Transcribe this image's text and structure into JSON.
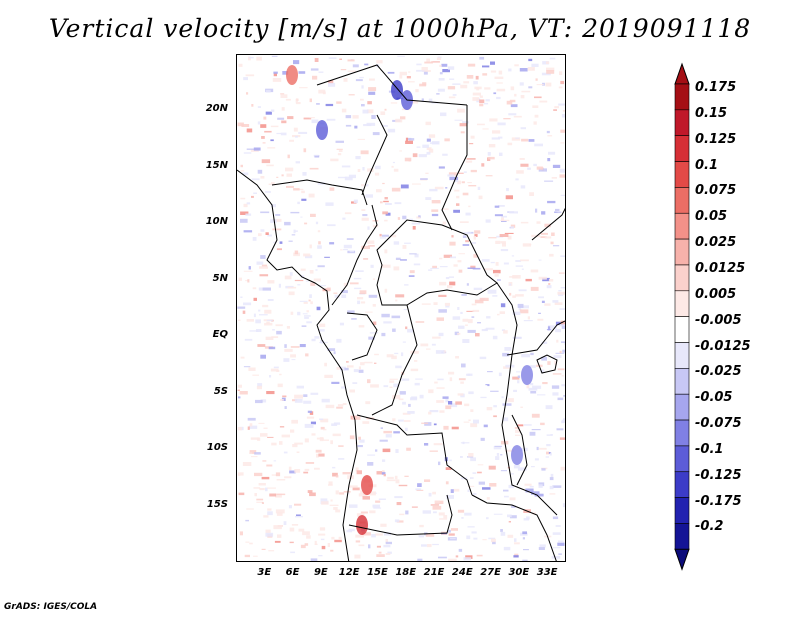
{
  "title": "Vertical velocity [m/s] at 1000hPa, VT: 2019091118",
  "footer": "GrADS: IGES/COLA",
  "map": {
    "region": "Central Africa",
    "lat_range": [
      -20,
      25
    ],
    "lon_range": [
      0,
      35
    ],
    "lat_ticks": [
      {
        "value": 20,
        "label": "20N"
      },
      {
        "value": 15,
        "label": "15N"
      },
      {
        "value": 10,
        "label": "10N"
      },
      {
        "value": 5,
        "label": "5N"
      },
      {
        "value": 0,
        "label": "EQ"
      },
      {
        "value": -5,
        "label": "5S"
      },
      {
        "value": -10,
        "label": "10S"
      },
      {
        "value": -15,
        "label": "15S"
      }
    ],
    "lon_ticks": [
      {
        "value": 3,
        "label": "3E"
      },
      {
        "value": 6,
        "label": "6E"
      },
      {
        "value": 9,
        "label": "9E"
      },
      {
        "value": 12,
        "label": "12E"
      },
      {
        "value": 15,
        "label": "15E"
      },
      {
        "value": 18,
        "label": "18E"
      },
      {
        "value": 21,
        "label": "21E"
      },
      {
        "value": 24,
        "label": "24E"
      },
      {
        "value": 27,
        "label": "27E"
      },
      {
        "value": 30,
        "label": "30E"
      },
      {
        "value": 33,
        "label": "33E"
      }
    ]
  },
  "colorbar": {
    "levels": [
      {
        "label": "0.175",
        "color": "#a50f15"
      },
      {
        "label": "0.15",
        "color": "#c0182a"
      },
      {
        "label": "0.125",
        "color": "#d62f36"
      },
      {
        "label": "0.1",
        "color": "#e34a47"
      },
      {
        "label": "0.075",
        "color": "#ec6e65"
      },
      {
        "label": "0.05",
        "color": "#f39189"
      },
      {
        "label": "0.025",
        "color": "#f7b2ab"
      },
      {
        "label": "0.0125",
        "color": "#fbd1cc"
      },
      {
        "label": "0.005",
        "color": "#fde9e6"
      },
      {
        "label": "-0.005",
        "color": "#ffffff"
      },
      {
        "label": "-0.0125",
        "color": "#e8e8fb"
      },
      {
        "label": "-0.025",
        "color": "#c8c8f5"
      },
      {
        "label": "-0.05",
        "color": "#a6a6ee"
      },
      {
        "label": "-0.075",
        "color": "#8080e4"
      },
      {
        "label": "-0.1",
        "color": "#5c5cd8"
      },
      {
        "label": "-0.125",
        "color": "#3c3cc8"
      },
      {
        "label": "-0.175",
        "color": "#2222b0"
      },
      {
        "label": "-0.2",
        "color": "#141496"
      }
    ],
    "top_color": "#a50f15",
    "bottom_color": "#0c0c7a"
  }
}
